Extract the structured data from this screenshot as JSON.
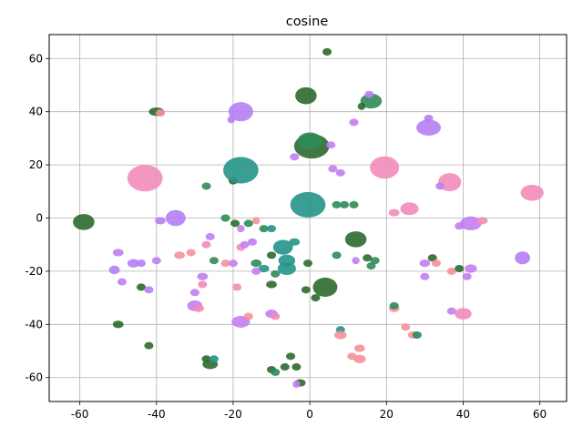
{
  "chart_data": {
    "type": "scatter",
    "title": "cosine",
    "xlabel": "",
    "ylabel": "",
    "xlim": [
      -68,
      67
    ],
    "ylim": [
      -69,
      69
    ],
    "xticks": [
      -60,
      -40,
      -20,
      0,
      20,
      40,
      60
    ],
    "yticks": [
      -60,
      -40,
      -20,
      0,
      20,
      40,
      60
    ],
    "grid": true,
    "colors": {
      "dark_green": "#2d6a2e",
      "teal": "#26938a",
      "mid_green": "#2e8b57",
      "purple": "#b57ef5",
      "pink": "#f28cba",
      "salmon": "#f4919a",
      "violet": "#c27ef0"
    },
    "clusters": [
      {
        "x": 4.5,
        "y": 62.5,
        "rx": 1.2,
        "ry": 1.4,
        "color": "dark_green"
      },
      {
        "x": -40,
        "y": 40,
        "rx": 2,
        "ry": 1.6,
        "color": "dark_green"
      },
      {
        "x": -39,
        "y": 39.5,
        "rx": 1.2,
        "ry": 1.2,
        "color": "salmon"
      },
      {
        "x": -18,
        "y": 40,
        "rx": 3.2,
        "ry": 3.6,
        "color": "purple"
      },
      {
        "x": -20.5,
        "y": 37,
        "rx": 1,
        "ry": 1,
        "color": "purple"
      },
      {
        "x": -1,
        "y": 46,
        "rx": 2.8,
        "ry": 3.2,
        "color": "dark_green"
      },
      {
        "x": 16,
        "y": 44,
        "rx": 2.8,
        "ry": 2.8,
        "color": "mid_green"
      },
      {
        "x": 13.5,
        "y": 42,
        "rx": 1,
        "ry": 1,
        "color": "dark_green"
      },
      {
        "x": 15.5,
        "y": 46.5,
        "rx": 1.2,
        "ry": 1.2,
        "color": "violet"
      },
      {
        "x": 11.5,
        "y": 36,
        "rx": 1.2,
        "ry": 1.2,
        "color": "violet"
      },
      {
        "x": 31,
        "y": 34,
        "rx": 3.2,
        "ry": 3,
        "color": "purple"
      },
      {
        "x": 31,
        "y": 37.5,
        "rx": 1.2,
        "ry": 1.2,
        "color": "purple"
      },
      {
        "x": -43,
        "y": 15,
        "rx": 4.6,
        "ry": 5,
        "color": "pink"
      },
      {
        "x": -20,
        "y": 14,
        "rx": 1.2,
        "ry": 1.2,
        "color": "dark_green"
      },
      {
        "x": -27,
        "y": 12,
        "rx": 1.2,
        "ry": 1.2,
        "color": "mid_green"
      },
      {
        "x": -18,
        "y": 18,
        "rx": 4.6,
        "ry": 5,
        "color": "teal"
      },
      {
        "x": 0.5,
        "y": 27,
        "rx": 4.6,
        "ry": 4.6,
        "color": "dark_green"
      },
      {
        "x": 0,
        "y": 29,
        "rx": 3.2,
        "ry": 3.2,
        "color": "mid_green"
      },
      {
        "x": -4,
        "y": 23,
        "rx": 1.2,
        "ry": 1.2,
        "color": "violet"
      },
      {
        "x": 5.5,
        "y": 27.5,
        "rx": 1.2,
        "ry": 1.2,
        "color": "violet"
      },
      {
        "x": 19.5,
        "y": 19,
        "rx": 3.8,
        "ry": 4.2,
        "color": "pink"
      },
      {
        "x": 6,
        "y": 18.5,
        "rx": 1.2,
        "ry": 1.2,
        "color": "violet"
      },
      {
        "x": 8,
        "y": 17,
        "rx": 1.2,
        "ry": 1.2,
        "color": "violet"
      },
      {
        "x": 36.5,
        "y": 13.5,
        "rx": 3,
        "ry": 3.4,
        "color": "pink"
      },
      {
        "x": 34,
        "y": 12,
        "rx": 1.2,
        "ry": 1.2,
        "color": "violet"
      },
      {
        "x": 58,
        "y": 9.5,
        "rx": 3,
        "ry": 3,
        "color": "pink"
      },
      {
        "x": -0.5,
        "y": 5,
        "rx": 4.6,
        "ry": 4.8,
        "color": "teal"
      },
      {
        "x": 7,
        "y": 5,
        "rx": 1.2,
        "ry": 1.2,
        "color": "mid_green"
      },
      {
        "x": 9,
        "y": 5,
        "rx": 1.2,
        "ry": 1.2,
        "color": "mid_green"
      },
      {
        "x": 11.5,
        "y": 5,
        "rx": 1.2,
        "ry": 1.2,
        "color": "mid_green"
      },
      {
        "x": -59,
        "y": -1.5,
        "rx": 2.8,
        "ry": 3,
        "color": "dark_green"
      },
      {
        "x": -35,
        "y": 0,
        "rx": 2.6,
        "ry": 3,
        "color": "purple"
      },
      {
        "x": -39,
        "y": -1,
        "rx": 1.4,
        "ry": 1.4,
        "color": "purple"
      },
      {
        "x": -22,
        "y": 0,
        "rx": 1.2,
        "ry": 1.2,
        "color": "mid_green"
      },
      {
        "x": -19.5,
        "y": -2,
        "rx": 1.2,
        "ry": 1.2,
        "color": "dark_green"
      },
      {
        "x": -16,
        "y": -2,
        "rx": 1.2,
        "ry": 1.2,
        "color": "mid_green"
      },
      {
        "x": -14,
        "y": -1,
        "rx": 1,
        "ry": 1,
        "color": "salmon"
      },
      {
        "x": -18,
        "y": -4,
        "rx": 1,
        "ry": 1,
        "color": "violet"
      },
      {
        "x": -12,
        "y": -4,
        "rx": 1.2,
        "ry": 1.2,
        "color": "mid_green"
      },
      {
        "x": -10,
        "y": -4,
        "rx": 1.2,
        "ry": 1.2,
        "color": "teal"
      },
      {
        "x": 26,
        "y": 3.5,
        "rx": 2.4,
        "ry": 2.4,
        "color": "pink"
      },
      {
        "x": 22,
        "y": 2,
        "rx": 1.4,
        "ry": 1.4,
        "color": "pink"
      },
      {
        "x": 42,
        "y": -2,
        "rx": 2.8,
        "ry": 2.6,
        "color": "violet"
      },
      {
        "x": 45,
        "y": -1,
        "rx": 1.4,
        "ry": 1.4,
        "color": "pink"
      },
      {
        "x": 39,
        "y": -3,
        "rx": 1.2,
        "ry": 1.2,
        "color": "violet"
      },
      {
        "x": -50,
        "y": -13,
        "rx": 1.4,
        "ry": 1.4,
        "color": "violet"
      },
      {
        "x": -34,
        "y": -14,
        "rx": 1.4,
        "ry": 1.4,
        "color": "salmon"
      },
      {
        "x": -31,
        "y": -13,
        "rx": 1.2,
        "ry": 1.2,
        "color": "salmon"
      },
      {
        "x": -26,
        "y": -7,
        "rx": 1.2,
        "ry": 1.2,
        "color": "violet"
      },
      {
        "x": -27,
        "y": -10,
        "rx": 1.2,
        "ry": 1.2,
        "color": "pink"
      },
      {
        "x": -18,
        "y": -11,
        "rx": 1.2,
        "ry": 1.2,
        "color": "pink"
      },
      {
        "x": -17,
        "y": -10,
        "rx": 1.2,
        "ry": 1.2,
        "color": "violet"
      },
      {
        "x": -15,
        "y": -9,
        "rx": 1.2,
        "ry": 1.2,
        "color": "violet"
      },
      {
        "x": -7,
        "y": -11,
        "rx": 2.6,
        "ry": 2.8,
        "color": "teal"
      },
      {
        "x": -4,
        "y": -9,
        "rx": 1.4,
        "ry": 1.4,
        "color": "teal"
      },
      {
        "x": -10,
        "y": -14,
        "rx": 1.2,
        "ry": 1.2,
        "color": "dark_green"
      },
      {
        "x": -6,
        "y": -16,
        "rx": 2.2,
        "ry": 2.2,
        "color": "teal"
      },
      {
        "x": 12,
        "y": -8,
        "rx": 2.8,
        "ry": 3,
        "color": "dark_green"
      },
      {
        "x": 7,
        "y": -14,
        "rx": 1.2,
        "ry": 1.2,
        "color": "mid_green"
      },
      {
        "x": 15,
        "y": -15,
        "rx": 1.2,
        "ry": 1.2,
        "color": "dark_green"
      },
      {
        "x": 17,
        "y": -16,
        "rx": 1.2,
        "ry": 1.2,
        "color": "mid_green"
      },
      {
        "x": 16,
        "y": -18,
        "rx": 1.2,
        "ry": 1.2,
        "color": "mid_green"
      },
      {
        "x": 12,
        "y": -16,
        "rx": 1,
        "ry": 1,
        "color": "violet"
      },
      {
        "x": -51,
        "y": -19.5,
        "rx": 1.4,
        "ry": 1.6,
        "color": "purple"
      },
      {
        "x": -46,
        "y": -17,
        "rx": 1.6,
        "ry": 1.6,
        "color": "purple"
      },
      {
        "x": -44,
        "y": -17,
        "rx": 1.2,
        "ry": 1.2,
        "color": "purple"
      },
      {
        "x": -40,
        "y": -16,
        "rx": 1.2,
        "ry": 1.2,
        "color": "violet"
      },
      {
        "x": -25,
        "y": -16,
        "rx": 1.2,
        "ry": 1.2,
        "color": "mid_green"
      },
      {
        "x": -22,
        "y": -17,
        "rx": 1.2,
        "ry": 1.2,
        "color": "salmon"
      },
      {
        "x": -20,
        "y": -17,
        "rx": 1.2,
        "ry": 1.2,
        "color": "violet"
      },
      {
        "x": -14,
        "y": -17,
        "rx": 1.4,
        "ry": 1.4,
        "color": "mid_green"
      },
      {
        "x": -12,
        "y": -19,
        "rx": 1.4,
        "ry": 1.4,
        "color": "teal"
      },
      {
        "x": -14,
        "y": -20,
        "rx": 1.2,
        "ry": 1.2,
        "color": "violet"
      },
      {
        "x": -6,
        "y": -19,
        "rx": 2.4,
        "ry": 2.4,
        "color": "teal"
      },
      {
        "x": -0.5,
        "y": -17,
        "rx": 1.2,
        "ry": 1.2,
        "color": "dark_green"
      },
      {
        "x": -9,
        "y": -21,
        "rx": 1.2,
        "ry": 1.2,
        "color": "mid_green"
      },
      {
        "x": 30,
        "y": -17,
        "rx": 1.4,
        "ry": 1.4,
        "color": "violet"
      },
      {
        "x": 32,
        "y": -15,
        "rx": 1.2,
        "ry": 1.2,
        "color": "dark_green"
      },
      {
        "x": 33,
        "y": -17,
        "rx": 1.2,
        "ry": 1.2,
        "color": "salmon"
      },
      {
        "x": 37,
        "y": -20,
        "rx": 1.2,
        "ry": 1.2,
        "color": "salmon"
      },
      {
        "x": 39,
        "y": -19,
        "rx": 1.2,
        "ry": 1.2,
        "color": "dark_green"
      },
      {
        "x": 42,
        "y": -19,
        "rx": 1.6,
        "ry": 1.6,
        "color": "violet"
      },
      {
        "x": 41,
        "y": -22,
        "rx": 1.2,
        "ry": 1.2,
        "color": "violet"
      },
      {
        "x": 55.5,
        "y": -15,
        "rx": 2,
        "ry": 2.4,
        "color": "purple"
      },
      {
        "x": -49,
        "y": -24,
        "rx": 1.2,
        "ry": 1.2,
        "color": "violet"
      },
      {
        "x": -44,
        "y": -26,
        "rx": 1.2,
        "ry": 1.2,
        "color": "dark_green"
      },
      {
        "x": -42,
        "y": -27,
        "rx": 1.2,
        "ry": 1.2,
        "color": "purple"
      },
      {
        "x": -28,
        "y": -22,
        "rx": 1.4,
        "ry": 1.4,
        "color": "violet"
      },
      {
        "x": -28,
        "y": -25,
        "rx": 1.2,
        "ry": 1.2,
        "color": "pink"
      },
      {
        "x": -19,
        "y": -26,
        "rx": 1.2,
        "ry": 1.2,
        "color": "pink"
      },
      {
        "x": -10,
        "y": -25,
        "rx": 1.4,
        "ry": 1.4,
        "color": "dark_green"
      },
      {
        "x": -1,
        "y": -27,
        "rx": 1.2,
        "ry": 1.2,
        "color": "dark_green"
      },
      {
        "x": 4,
        "y": -26,
        "rx": 3.2,
        "ry": 3.6,
        "color": "dark_green"
      },
      {
        "x": 1.5,
        "y": -30,
        "rx": 1.2,
        "ry": 1.2,
        "color": "dark_green"
      },
      {
        "x": 30,
        "y": -22,
        "rx": 1.2,
        "ry": 1.2,
        "color": "violet"
      },
      {
        "x": -30,
        "y": -28,
        "rx": 1.2,
        "ry": 1.2,
        "color": "violet"
      },
      {
        "x": -30,
        "y": -33,
        "rx": 2,
        "ry": 2,
        "color": "violet"
      },
      {
        "x": -29,
        "y": -34,
        "rx": 1.4,
        "ry": 1.4,
        "color": "pink"
      },
      {
        "x": -18,
        "y": -39,
        "rx": 2.4,
        "ry": 2.2,
        "color": "violet"
      },
      {
        "x": -16,
        "y": -37,
        "rx": 1.2,
        "ry": 1.2,
        "color": "salmon"
      },
      {
        "x": -10,
        "y": -36,
        "rx": 1.6,
        "ry": 1.6,
        "color": "violet"
      },
      {
        "x": -9,
        "y": -37,
        "rx": 1.2,
        "ry": 1.2,
        "color": "pink"
      },
      {
        "x": 8,
        "y": -42,
        "rx": 1.2,
        "ry": 1.2,
        "color": "teal"
      },
      {
        "x": 8,
        "y": -44,
        "rx": 1.6,
        "ry": 1.6,
        "color": "salmon"
      },
      {
        "x": 22,
        "y": -34,
        "rx": 1.4,
        "ry": 1.4,
        "color": "salmon"
      },
      {
        "x": 22,
        "y": -33,
        "rx": 1.2,
        "ry": 1.2,
        "color": "mid_green"
      },
      {
        "x": 25,
        "y": -41,
        "rx": 1.2,
        "ry": 1.2,
        "color": "salmon"
      },
      {
        "x": 27,
        "y": -44,
        "rx": 1.4,
        "ry": 1.4,
        "color": "salmon"
      },
      {
        "x": 28,
        "y": -44,
        "rx": 1.2,
        "ry": 1.2,
        "color": "mid_green"
      },
      {
        "x": 37,
        "y": -35,
        "rx": 1.2,
        "ry": 1.2,
        "color": "violet"
      },
      {
        "x": 40,
        "y": -36,
        "rx": 2.2,
        "ry": 2.2,
        "color": "pink"
      },
      {
        "x": -50,
        "y": -40,
        "rx": 1.4,
        "ry": 1.4,
        "color": "dark_green"
      },
      {
        "x": -42,
        "y": -48,
        "rx": 1.2,
        "ry": 1.2,
        "color": "dark_green"
      },
      {
        "x": -27,
        "y": -53,
        "rx": 1.2,
        "ry": 1.2,
        "color": "dark_green"
      },
      {
        "x": -26,
        "y": -55,
        "rx": 2,
        "ry": 1.8,
        "color": "dark_green"
      },
      {
        "x": -25,
        "y": -53,
        "rx": 1.2,
        "ry": 1.2,
        "color": "teal"
      },
      {
        "x": -10,
        "y": -57,
        "rx": 1.2,
        "ry": 1.2,
        "color": "dark_green"
      },
      {
        "x": -9,
        "y": -58,
        "rx": 1.2,
        "ry": 1.2,
        "color": "mid_green"
      },
      {
        "x": -6.5,
        "y": -56,
        "rx": 1.2,
        "ry": 1.2,
        "color": "dark_green"
      },
      {
        "x": -5,
        "y": -52,
        "rx": 1.2,
        "ry": 1.2,
        "color": "dark_green"
      },
      {
        "x": -3.5,
        "y": -56,
        "rx": 1.2,
        "ry": 1.2,
        "color": "dark_green"
      },
      {
        "x": -2.5,
        "y": -62,
        "rx": 1.4,
        "ry": 1.4,
        "color": "dark_green"
      },
      {
        "x": -3.5,
        "y": -62.5,
        "rx": 1,
        "ry": 1,
        "color": "violet"
      },
      {
        "x": 13,
        "y": -49,
        "rx": 1.4,
        "ry": 1.4,
        "color": "salmon"
      },
      {
        "x": 11,
        "y": -52,
        "rx": 1.2,
        "ry": 1.2,
        "color": "salmon"
      },
      {
        "x": 13,
        "y": -53,
        "rx": 1.6,
        "ry": 1.6,
        "color": "salmon"
      }
    ]
  }
}
